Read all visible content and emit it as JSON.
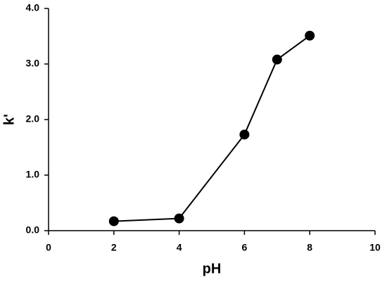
{
  "chart_data": {
    "type": "line",
    "x_label": "pH",
    "y_label": "k'",
    "x": [
      2,
      4,
      6,
      7,
      8
    ],
    "values": [
      0.17,
      0.22,
      1.73,
      3.08,
      3.51
    ],
    "color": "#000000",
    "xlim": [
      0,
      10
    ],
    "xticks": [
      0,
      2,
      4,
      6,
      8,
      10
    ],
    "ylim": [
      0,
      4
    ],
    "yticks": [
      {
        "value": 0,
        "label": "0.0"
      },
      {
        "value": 1,
        "label": "1.0"
      },
      {
        "value": 2,
        "label": "2.0"
      },
      {
        "value": 3,
        "label": "3.0"
      },
      {
        "value": 4,
        "label": "4.0"
      }
    ]
  }
}
